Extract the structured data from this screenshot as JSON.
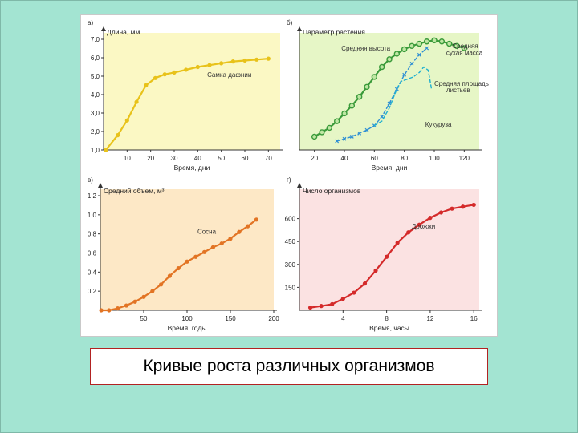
{
  "slide": {
    "caption": "Кривые роста различных организмов",
    "background_color": "#a3e4d2"
  },
  "chart_data": [
    {
      "id": "a",
      "type": "line",
      "panel_label": "а)",
      "ylabel": "Длина, мм",
      "xlabel": "Время, дни",
      "xlim": [
        0,
        75
      ],
      "ylim": [
        1.0,
        7.0
      ],
      "xticks": [
        10,
        20,
        30,
        40,
        50,
        60,
        70
      ],
      "yticks": [
        1.0,
        2.0,
        3.0,
        4.0,
        5.0,
        6.0,
        7.0
      ],
      "ytick_labels": [
        "1,0",
        "2,0",
        "3,0",
        "4,0",
        "5,0",
        "6,0",
        "7,0"
      ],
      "bg_color": "#fbf8c4",
      "series": [
        {
          "name": "Самка дафнии",
          "color": "#e8c21a",
          "marker": "dot",
          "dashed": false,
          "x": [
            1,
            6,
            10,
            14,
            18,
            22,
            26,
            30,
            35,
            40,
            45,
            50,
            55,
            60,
            65,
            70
          ],
          "y": [
            1.0,
            1.8,
            2.6,
            3.6,
            4.5,
            4.9,
            5.1,
            5.2,
            5.35,
            5.5,
            5.6,
            5.7,
            5.8,
            5.85,
            5.9,
            5.95
          ]
        }
      ],
      "annotations": [
        {
          "text": "Самка дафнии",
          "x": 44,
          "y": 4.95
        }
      ]
    },
    {
      "id": "b",
      "type": "line",
      "panel_label": "б)",
      "ylabel": "Параметр растения",
      "xlabel": "Время, дни",
      "xlim": [
        10,
        130
      ],
      "ylim": [
        0,
        100
      ],
      "xticks": [
        20,
        40,
        60,
        80,
        100,
        120
      ],
      "yticks": [],
      "ytick_labels": [],
      "bg_color": "#e6f6c6",
      "series": [
        {
          "name": "Средняя высота",
          "color": "#3a9a3a",
          "marker": "circle",
          "dashed": false,
          "x": [
            20,
            25,
            30,
            35,
            40,
            45,
            50,
            55,
            60,
            65,
            70,
            75,
            80,
            85,
            90,
            95,
            100,
            105,
            110,
            115,
            120
          ],
          "y": [
            12,
            16,
            20,
            26,
            33,
            40,
            48,
            57,
            66,
            75,
            82,
            87,
            91,
            94,
            96,
            98,
            99,
            98,
            96,
            94,
            92
          ]
        },
        {
          "name": "Средняя сухая масса",
          "color": "#2e8fd4",
          "marker": "x",
          "dashed": true,
          "x": [
            35,
            40,
            45,
            50,
            55,
            60,
            65,
            70,
            75,
            80,
            85,
            90,
            95
          ],
          "y": [
            8,
            10,
            12,
            15,
            18,
            22,
            30,
            42,
            55,
            68,
            78,
            86,
            92
          ]
        },
        {
          "name": "Средняя площадь листьев",
          "color": "#1fb0d0",
          "marker": "none",
          "dashed": true,
          "x": [
            60,
            65,
            70,
            75,
            78,
            82,
            86,
            90,
            93,
            96,
            98
          ],
          "y": [
            22,
            26,
            38,
            55,
            62,
            64,
            66,
            70,
            75,
            72,
            56
          ]
        }
      ],
      "annotations": [
        {
          "text": "Средняя высота",
          "x": 38,
          "y": 90
        },
        {
          "text": "Средняя",
          "x": 112,
          "y": 92
        },
        {
          "text": "сухая масса",
          "x": 108,
          "y": 86
        },
        {
          "text": "Средняя площадь",
          "x": 100,
          "y": 58
        },
        {
          "text": "листьев",
          "x": 108,
          "y": 52
        },
        {
          "text": "Кукуруза",
          "x": 94,
          "y": 21
        }
      ]
    },
    {
      "id": "c",
      "type": "line",
      "panel_label": "в)",
      "ylabel": "Средний объем, м³",
      "xlabel": "Время, годы",
      "xlim": [
        0,
        200
      ],
      "ylim": [
        0,
        1.2
      ],
      "xticks": [
        50,
        100,
        150,
        200
      ],
      "yticks": [
        0.2,
        0.4,
        0.6,
        0.8,
        1.0,
        1.2
      ],
      "ytick_labels": [
        "0,2",
        "0,4",
        "0,6",
        "0,8",
        "1,0",
        "1,2"
      ],
      "bg_color": "#fde8c6",
      "series": [
        {
          "name": "Сосна",
          "color": "#e27424",
          "marker": "dot",
          "dashed": false,
          "x": [
            1,
            10,
            20,
            30,
            40,
            50,
            60,
            70,
            80,
            90,
            100,
            110,
            120,
            130,
            140,
            150,
            160,
            170,
            180
          ],
          "y": [
            0.0,
            0.0,
            0.02,
            0.05,
            0.09,
            0.14,
            0.2,
            0.27,
            0.36,
            0.44,
            0.51,
            0.56,
            0.61,
            0.66,
            0.7,
            0.75,
            0.82,
            0.88,
            0.95
          ]
        }
      ],
      "annotations": [
        {
          "text": "Сосна",
          "x": 112,
          "y": 0.8
        }
      ]
    },
    {
      "id": "d",
      "type": "line",
      "panel_label": "г)",
      "ylabel": "Число организмов",
      "xlabel": "Время, часы",
      "xlim": [
        0,
        16.5
      ],
      "ylim": [
        0,
        750
      ],
      "xticks": [
        4,
        8,
        12,
        16
      ],
      "yticks": [
        150,
        300,
        450,
        600
      ],
      "ytick_labels": [
        "150",
        "300",
        "450",
        "600"
      ],
      "bg_color": "#fbe2e2",
      "series": [
        {
          "name": "Дрожжи",
          "color": "#d42a2a",
          "marker": "dot",
          "dashed": false,
          "x": [
            1,
            2,
            3,
            4,
            5,
            6,
            7,
            8,
            9,
            10,
            11,
            12,
            13,
            14,
            15,
            16
          ],
          "y": [
            18,
            28,
            40,
            75,
            115,
            175,
            260,
            350,
            442,
            510,
            560,
            605,
            640,
            665,
            678,
            690
          ]
        }
      ],
      "annotations": [
        {
          "text": "Дрожжи",
          "x": 10.3,
          "y": 535
        }
      ]
    }
  ]
}
